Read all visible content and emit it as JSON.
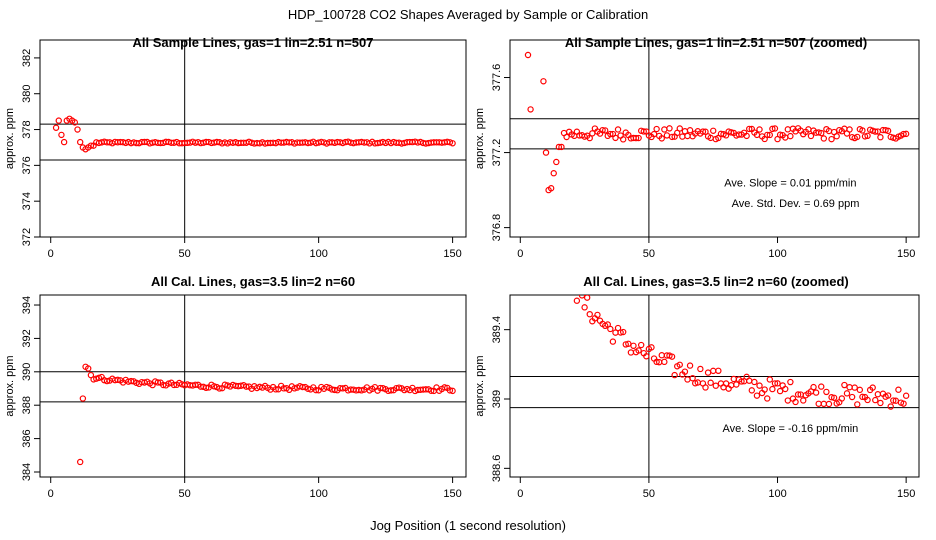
{
  "figure": {
    "title": "HDP_100728  CO2 Shapes Averaged by Sample or Calibration",
    "xlabel": "Jog Position (1 second resolution)"
  },
  "colors": {
    "points": "#ff0000",
    "lines": "#000000",
    "frame": "#000000"
  },
  "chart_data": [
    {
      "id": "p1",
      "type": "scatter",
      "title": "All Sample Lines, gas=1 lin=2.51 n=507",
      "ylabel": "approx. ppm",
      "xlim": [
        -4,
        155
      ],
      "ylim": [
        372,
        383
      ],
      "xticks": [
        0,
        50,
        100,
        150
      ],
      "yticks": [
        372,
        374,
        376,
        378,
        380,
        382
      ],
      "hlines": [
        378.3,
        376.3
      ],
      "vlines": [
        50
      ],
      "annotations": [],
      "series_kind": "plateau",
      "points": [
        [
          2,
          378.1
        ],
        [
          3,
          378.5
        ],
        [
          4,
          377.7
        ],
        [
          5,
          377.3
        ],
        [
          6,
          378.5
        ],
        [
          7,
          378.6
        ],
        [
          8,
          378.5
        ],
        [
          9,
          378.4
        ],
        [
          10,
          378.0
        ],
        [
          11,
          377.3
        ],
        [
          12,
          377.0
        ],
        [
          13,
          376.9
        ],
        [
          14,
          377.0
        ],
        [
          15,
          377.1
        ],
        [
          16,
          377.1
        ]
      ],
      "plateau": {
        "start": 17,
        "end": 150,
        "level": 377.27,
        "jitter": 0.05
      }
    },
    {
      "id": "p2",
      "type": "scatter",
      "title": "All Sample Lines, gas=1 lin=2.51 n=507 (zoomed)",
      "ylabel": "approx. ppm",
      "xlim": [
        -4,
        155
      ],
      "ylim": [
        376.75,
        377.8
      ],
      "xticks": [
        0,
        50,
        100,
        150
      ],
      "yticks": [
        376.8,
        377.2,
        377.6
      ],
      "hlines": [
        377.38,
        377.22
      ],
      "vlines": [
        50
      ],
      "annotations": [
        {
          "text": "Ave. Slope =  0.01  ppm/min",
          "x": 105,
          "y": 377.02
        },
        {
          "text": "Ave. Std. Dev. =  0.69  ppm",
          "x": 107,
          "y": 376.91
        }
      ],
      "series_kind": "plateau",
      "points": [
        [
          3,
          377.72
        ],
        [
          4,
          377.43
        ],
        [
          9,
          377.58
        ],
        [
          10,
          377.2
        ],
        [
          11,
          377.0
        ],
        [
          12,
          377.01
        ],
        [
          13,
          377.09
        ],
        [
          14,
          377.15
        ],
        [
          15,
          377.23
        ],
        [
          16,
          377.23
        ]
      ],
      "plateau": {
        "start": 17,
        "end": 150,
        "level": 377.3,
        "jitter": 0.03
      }
    },
    {
      "id": "p3",
      "type": "scatter",
      "title": "All Cal. Lines, gas=3.5 lin=2 n=60",
      "ylabel": "approx. ppm",
      "xlim": [
        -4,
        155
      ],
      "ylim": [
        383.7,
        394.6
      ],
      "xticks": [
        0,
        50,
        100,
        150
      ],
      "yticks": [
        384,
        386,
        388,
        390,
        392,
        394
      ],
      "hlines": [
        390.0,
        388.2
      ],
      "vlines": [
        50
      ],
      "annotations": [],
      "series_kind": "decay",
      "points": [
        [
          11,
          384.6
        ],
        [
          12,
          388.4
        ],
        [
          13,
          390.3
        ],
        [
          14,
          390.2
        ],
        [
          15,
          389.8
        ]
      ],
      "decay": {
        "start": 16,
        "end": 150,
        "from": 389.65,
        "to": 388.95,
        "jitter": 0.12
      }
    },
    {
      "id": "p4",
      "type": "scatter",
      "title": "All Cal. Lines, gas=3.5 lin=2 n=60 (zoomed)",
      "ylabel": "approx. ppm",
      "xlim": [
        -4,
        155
      ],
      "ylim": [
        388.55,
        389.6
      ],
      "xticks": [
        0,
        50,
        100,
        150
      ],
      "yticks": [
        388.6,
        389.0,
        389.4
      ],
      "hlines": [
        389.13,
        388.95
      ],
      "vlines": [
        50
      ],
      "annotations": [
        {
          "text": "Ave. Slope =  -0.16  ppm/min",
          "x": 105,
          "y": 388.81
        }
      ],
      "series_kind": "decay",
      "points": [],
      "decay": {
        "start": 22,
        "end": 150,
        "from": 389.6,
        "to": 389.0,
        "jitter": 0.06
      }
    }
  ]
}
